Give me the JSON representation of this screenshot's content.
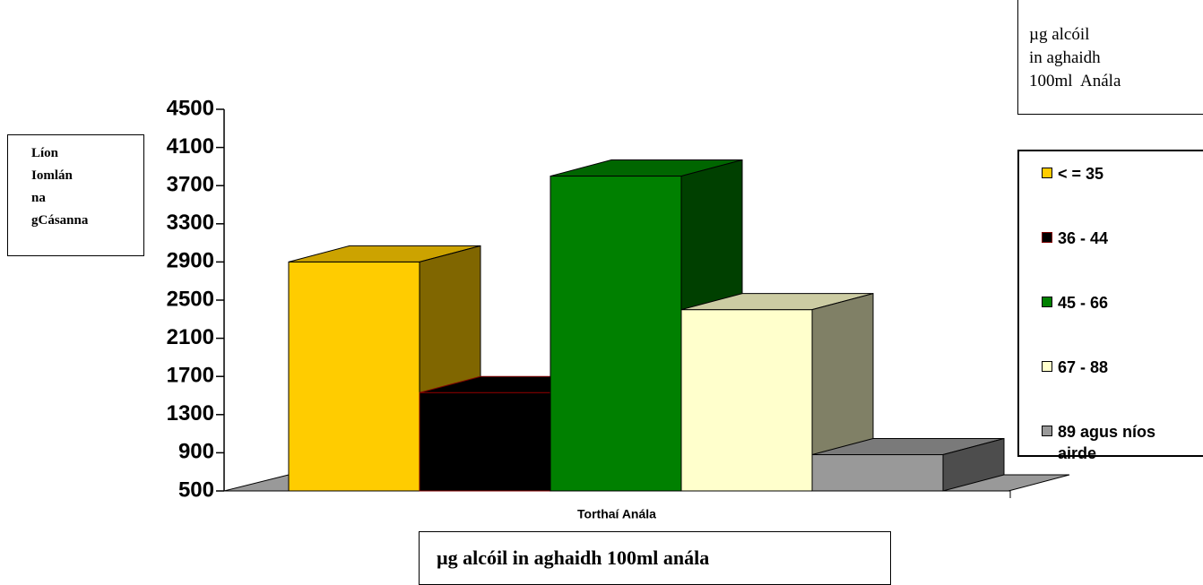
{
  "chart_data": {
    "type": "bar3d",
    "categories": [
      "Torthaí Anála"
    ],
    "series": [
      {
        "name": "< = 35",
        "color": "#ffcc00",
        "values": [
          2900
        ]
      },
      {
        "name": "36 - 44",
        "color": "#000000",
        "edgecolor": "#800000",
        "values": [
          1530
        ]
      },
      {
        "name": "45 - 66",
        "color": "#008000",
        "values": [
          3800
        ]
      },
      {
        "name": "67 - 88",
        "color": "#ffffcc",
        "values": [
          2400
        ]
      },
      {
        "name": "89 agus níos airde",
        "color": "#999999",
        "values": [
          880
        ]
      }
    ],
    "ylim": [
      500,
      4500
    ],
    "yticks": [
      500,
      900,
      1300,
      1700,
      2100,
      2500,
      2900,
      3300,
      3700,
      4100,
      4500
    ],
    "ylabel": [
      "Líon",
      "Iomlán",
      "na",
      "gCásanna"
    ],
    "xlabel": "µg alcóil in aghaidh 100ml anála",
    "legend_title": [
      "µg alcóil",
      "in aghaidh",
      "100ml  Anála"
    ]
  }
}
